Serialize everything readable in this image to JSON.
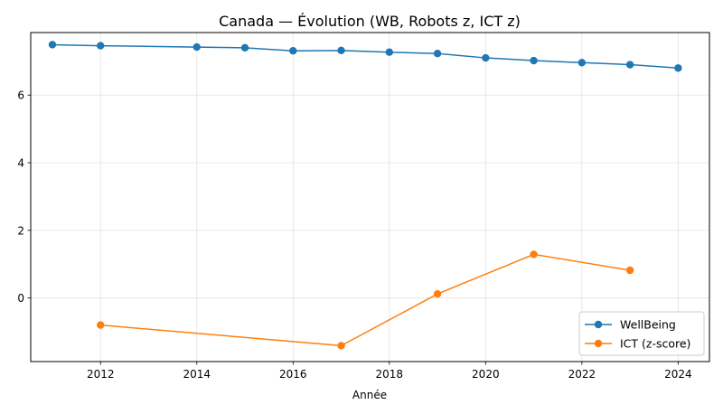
{
  "chart_data": {
    "type": "line",
    "title": "Canada — Évolution (WB, Robots z, ICT z)",
    "xlabel": "Année",
    "ylabel": "",
    "xlim": [
      2010.55,
      2024.65
    ],
    "ylim": [
      -1.88,
      7.85
    ],
    "xticks": [
      2012,
      2014,
      2016,
      2018,
      2020,
      2022,
      2024
    ],
    "yticks": [
      0,
      2,
      4,
      6
    ],
    "grid": true,
    "legend_position": "lower-right",
    "series": [
      {
        "name": "WellBeing",
        "color": "#1f77b4",
        "x": [
          2011,
          2012,
          2014,
          2015,
          2016,
          2017,
          2018,
          2019,
          2020,
          2021,
          2022,
          2023,
          2024
        ],
        "y": [
          7.49,
          7.46,
          7.42,
          7.4,
          7.31,
          7.32,
          7.27,
          7.23,
          7.1,
          7.02,
          6.96,
          6.9,
          6.8
        ]
      },
      {
        "name": "ICT (z-score)",
        "color": "#ff7f0e",
        "x": [
          2012,
          2017,
          2019,
          2021,
          2023
        ],
        "y": [
          -0.8,
          -1.41,
          0.12,
          1.29,
          0.82
        ]
      }
    ]
  }
}
